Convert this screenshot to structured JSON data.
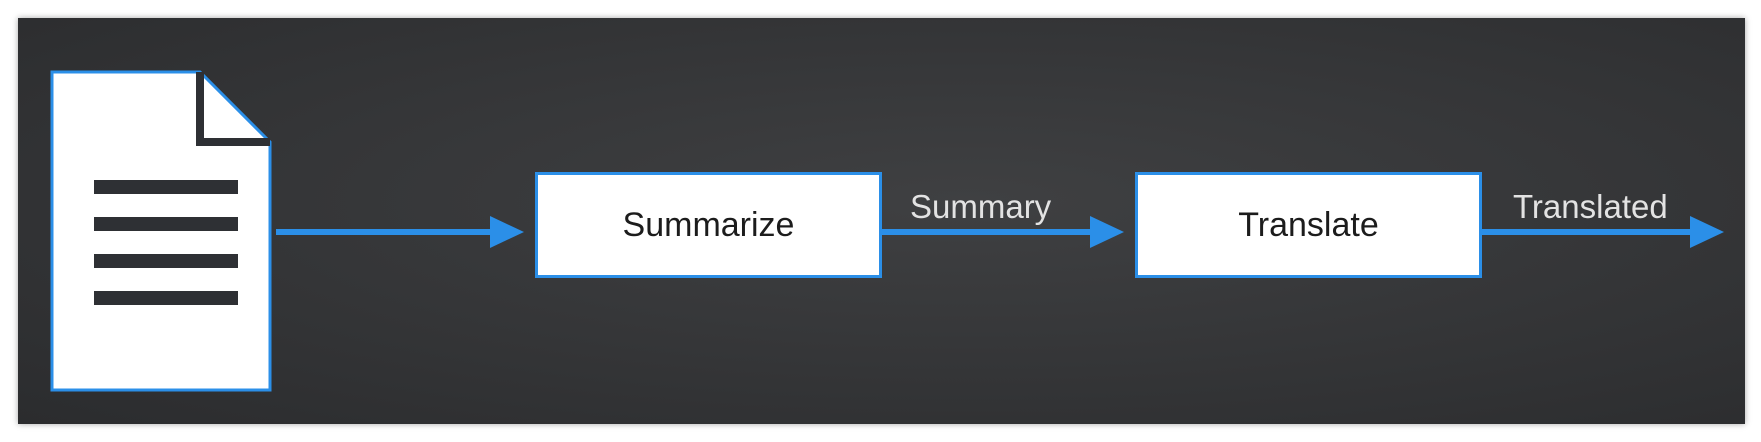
{
  "diagram": {
    "steps": [
      {
        "label": "Summarize"
      },
      {
        "label": "Translate"
      }
    ],
    "edges": [
      {
        "from": "document",
        "to": "Summarize",
        "label": ""
      },
      {
        "from": "Summarize",
        "to": "Translate",
        "label": "Summary"
      },
      {
        "from": "Translate",
        "to": "output",
        "label": "Translated"
      }
    ]
  },
  "colors": {
    "background": "#353638",
    "arrow": "#2b8fe8",
    "box_fill": "#ffffff",
    "box_border": "#2b8fe8",
    "document": "#ffffff",
    "document_lines": "#2e3034",
    "edge_label": "#e3e3e3"
  },
  "icons": {
    "input": "document-icon"
  }
}
